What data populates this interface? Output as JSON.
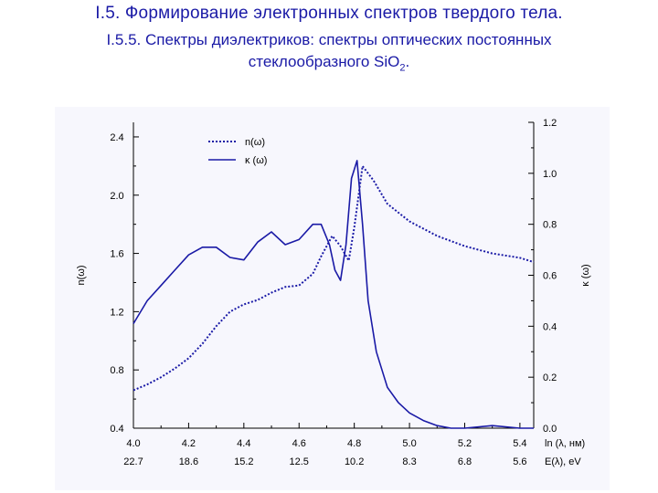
{
  "header": {
    "line1": "I.5. Формирование электронных спектров твердого тела.",
    "line2_bold": "I.5.5. Спектры диэлектриков:",
    "line2_rest": " спектры оптических постоянных",
    "line3_main": "стеклообразного SiO",
    "line3_sub": "2",
    "line3_end": "."
  },
  "chart_data": {
    "type": "line",
    "xlabel": "ln (λ, нм)",
    "xlabel_secondary": "E(λ), eV",
    "ylabel_left": "n(ω)",
    "ylabel_right": "κ (ω)",
    "xlim": [
      4.0,
      5.45
    ],
    "ylim_left": [
      0.4,
      2.5
    ],
    "ylim_right": [
      0.0,
      1.2
    ],
    "x_ticks": [
      "4.0",
      "4.2",
      "4.4",
      "4.6",
      "4.8",
      "5.0",
      "5.2",
      "5.4"
    ],
    "x_ticks_secondary": [
      "22.7",
      "18.6",
      "15.2",
      "12.5",
      "10.2",
      "8.3",
      "6.8",
      "5.6"
    ],
    "y_ticks_left": [
      "2.4",
      "2.0",
      "1.6",
      "1.2",
      "0.8",
      "0.4"
    ],
    "y_ticks_right": [
      "1.2",
      "1.0",
      "0.8",
      "0.6",
      "0.4",
      "0.2",
      "0.0"
    ],
    "legend_position": "top-left",
    "grid": false,
    "series": [
      {
        "name": "n(ω)",
        "axis": "left",
        "style": "dotted",
        "x": [
          4.0,
          4.05,
          4.1,
          4.15,
          4.2,
          4.25,
          4.3,
          4.35,
          4.4,
          4.45,
          4.5,
          4.55,
          4.6,
          4.65,
          4.68,
          4.72,
          4.75,
          4.78,
          4.8,
          4.83,
          4.87,
          4.92,
          5.0,
          5.1,
          5.2,
          5.3,
          5.4,
          5.45
        ],
        "y": [
          0.66,
          0.7,
          0.75,
          0.81,
          0.88,
          0.98,
          1.1,
          1.2,
          1.25,
          1.28,
          1.33,
          1.37,
          1.38,
          1.46,
          1.58,
          1.72,
          1.65,
          1.55,
          1.78,
          2.2,
          2.1,
          1.94,
          1.82,
          1.72,
          1.65,
          1.6,
          1.57,
          1.54
        ]
      },
      {
        "name": "κ (ω)",
        "axis": "right",
        "style": "solid",
        "x": [
          4.0,
          4.05,
          4.1,
          4.15,
          4.2,
          4.25,
          4.3,
          4.35,
          4.4,
          4.45,
          4.5,
          4.55,
          4.6,
          4.65,
          4.68,
          4.71,
          4.73,
          4.75,
          4.77,
          4.79,
          4.81,
          4.83,
          4.85,
          4.88,
          4.92,
          4.96,
          5.0,
          5.05,
          5.1,
          5.15,
          5.2,
          5.3,
          5.4,
          5.45
        ],
        "y": [
          0.41,
          0.5,
          0.56,
          0.62,
          0.68,
          0.71,
          0.71,
          0.67,
          0.66,
          0.73,
          0.77,
          0.72,
          0.74,
          0.8,
          0.8,
          0.72,
          0.62,
          0.58,
          0.72,
          0.98,
          1.05,
          0.8,
          0.5,
          0.3,
          0.16,
          0.1,
          0.06,
          0.03,
          0.01,
          0.0,
          0.0,
          0.01,
          0.0,
          0.0
        ]
      }
    ]
  }
}
